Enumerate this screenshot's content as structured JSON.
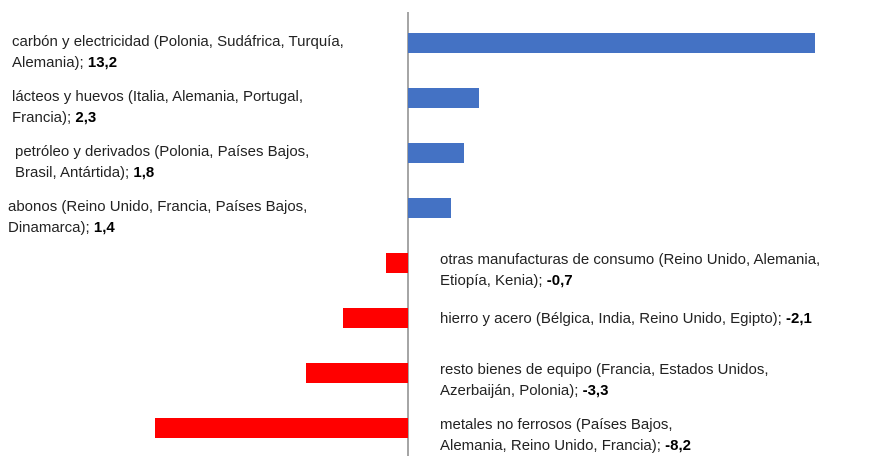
{
  "chart_data": {
    "type": "bar",
    "orientation": "horizontal",
    "categories": [
      "carbón y electricidad (Polonia, Sudáfrica, Turquía, Alemania);",
      "lácteos y huevos (Italia, Alemania, Portugal, Francia);",
      "petróleo y derivados (Polonia, Países Bajos, Brasil, Antártida);",
      "abonos (Reino Unido, Francia, Países Bajos, Dinamarca);",
      "otras manufacturas de consumo (Reino Unido, Alemania, Etiopía, Kenia);",
      "hierro y acero (Bélgica, India, Reino Unido, Egipto);",
      "resto bienes de equipo (Francia, Estados Unidos, Azerbaiján, Polonia);",
      "metales no ferrosos (Países Bajos, Alemania, Reino Unido, Francia);"
    ],
    "values": [
      13.2,
      2.3,
      1.8,
      1.4,
      -0.7,
      -2.1,
      -3.3,
      -8.2
    ],
    "value_labels": [
      "13,2",
      "2,3",
      "1,8",
      "1,4",
      "-0,7",
      "-2,1",
      "-3,3",
      "-8,2"
    ],
    "positive_color": "#4472c4",
    "negative_color": "#ff0000"
  }
}
